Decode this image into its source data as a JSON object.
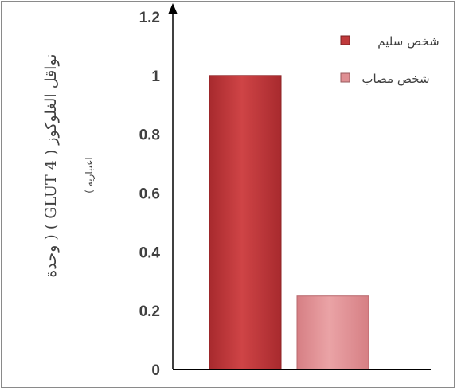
{
  "chart_data": {
    "type": "bar",
    "categories": [
      "شخص سليم",
      "شخص مصاب"
    ],
    "values": [
      1.0,
      0.25
    ],
    "ylim": [
      0,
      1.2
    ],
    "yticks": [
      "0",
      "0.2",
      "0.4",
      "0.6",
      "0.8",
      "1",
      "1.2"
    ],
    "ytick_values": [
      0,
      0.2,
      0.4,
      0.6,
      0.8,
      1.0,
      1.2
    ],
    "ylabel": "نواقل الغلوكوز ( GLUT 4 ) ( وحدة",
    "ylabel_line2": "اعتبارية )",
    "legend": [
      {
        "name": "شخص سليم",
        "color": "#c0393b"
      },
      {
        "name": "شخص مصاب",
        "color": "#df8f93"
      }
    ],
    "legend_position": "top-right",
    "colors": {
      "healthy": "#c0393b",
      "sick": "#df8f93",
      "axis": "#000000"
    }
  }
}
